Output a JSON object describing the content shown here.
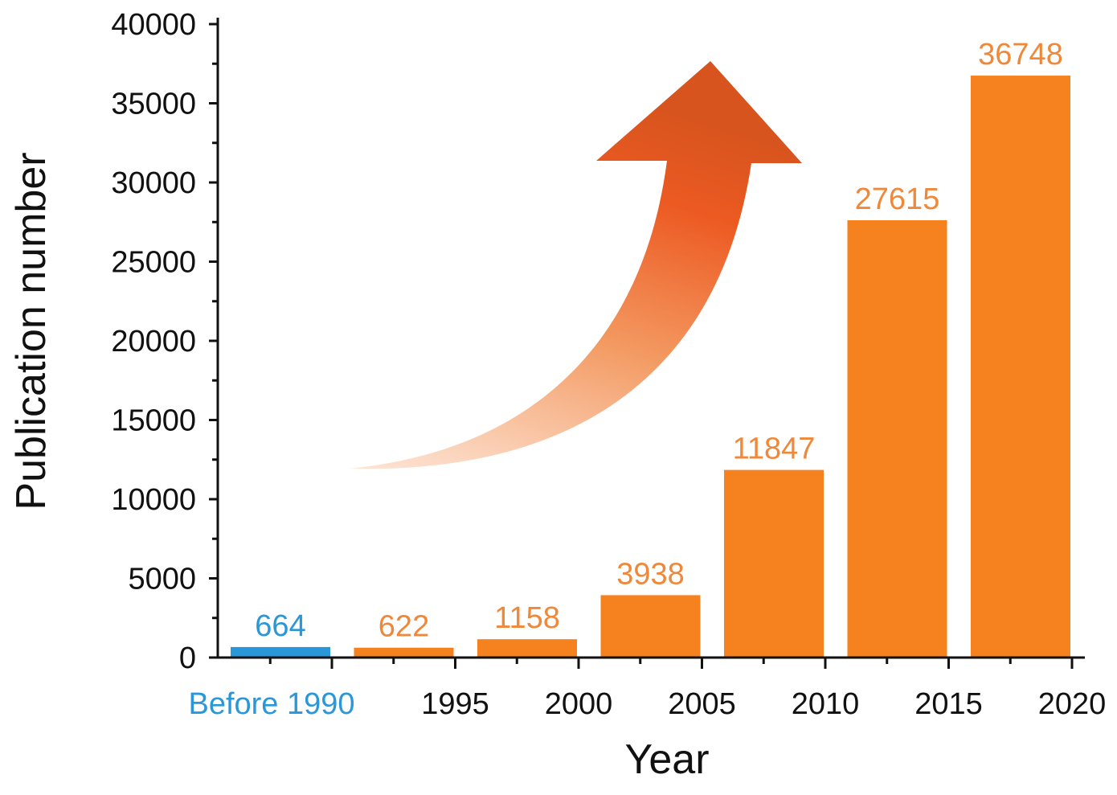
{
  "chart_data": {
    "type": "bar",
    "categories": [
      "Before 1990",
      "1995",
      "2000",
      "2005",
      "2010",
      "2015",
      "2020"
    ],
    "values": [
      664,
      622,
      1158,
      3938,
      11847,
      27615,
      36748
    ],
    "value_labels": [
      "664",
      "622",
      "1158",
      "3938",
      "11847",
      "27615",
      "36748"
    ],
    "xlabel": "Year",
    "ylabel": "Publication number",
    "ylim": [
      0,
      40000
    ],
    "yticks": [
      0,
      5000,
      10000,
      15000,
      20000,
      25000,
      30000,
      35000,
      40000
    ],
    "grid": false,
    "annotation": "upward-trend-arrow",
    "colors": {
      "highlight": "#2a98d8",
      "bars": "#f5821f",
      "labels": "#f0883a",
      "axis": "#111111"
    },
    "highlight_index": 0
  }
}
